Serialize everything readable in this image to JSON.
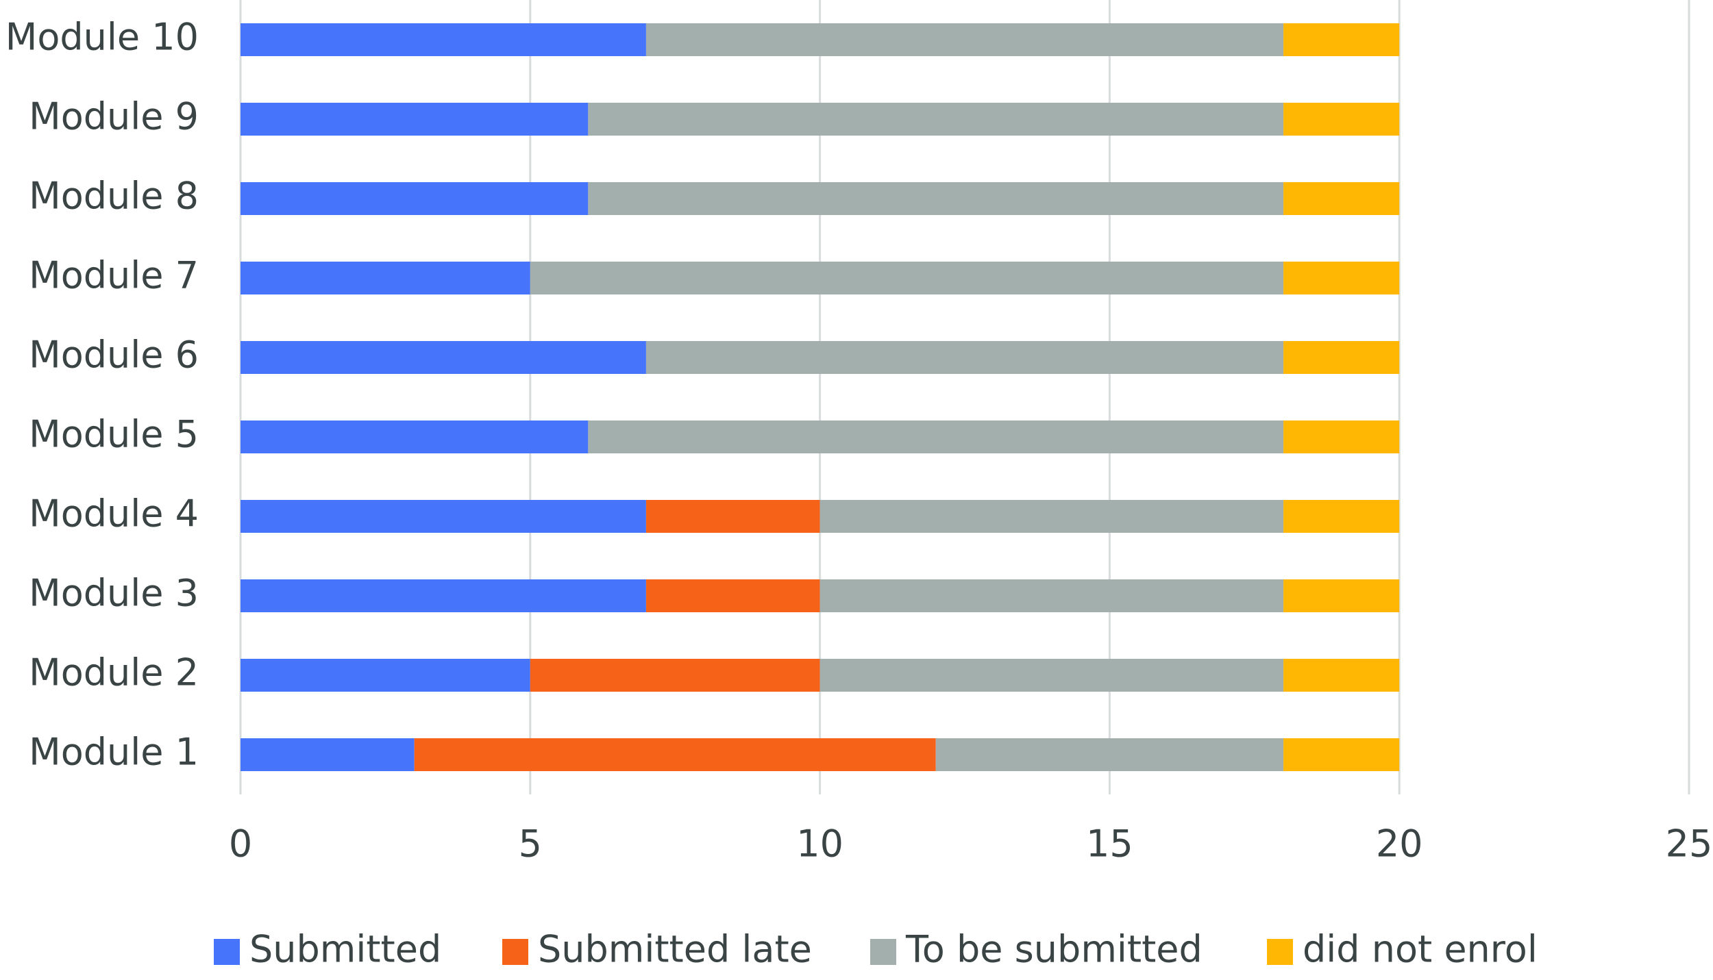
{
  "chart_data": {
    "type": "bar",
    "orientation": "horizontal",
    "stacked": true,
    "categories": [
      "Module 1",
      "Module 2",
      "Module 3",
      "Module 4",
      "Module 5",
      "Module 6",
      "Module 7",
      "Module 8",
      "Module 9",
      "Module 10"
    ],
    "series": [
      {
        "name": "Submitted",
        "color": "#4675fb",
        "values": [
          3,
          5,
          7,
          7,
          6,
          7,
          5,
          6,
          6,
          7
        ]
      },
      {
        "name": "Submitted late",
        "color": "#f76219",
        "values": [
          9,
          5,
          3,
          3,
          0,
          0,
          0,
          0,
          0,
          0
        ]
      },
      {
        "name": "To be submitted",
        "color": "#a3afad",
        "values": [
          6,
          8,
          8,
          8,
          12,
          11,
          13,
          12,
          12,
          11
        ]
      },
      {
        "name": "did not enrol",
        "color": "#ffb703",
        "values": [
          2,
          2,
          2,
          2,
          2,
          2,
          2,
          2,
          2,
          2
        ]
      }
    ],
    "xlim": [
      0,
      25
    ],
    "xticks": [
      0,
      5,
      10,
      15,
      20,
      25
    ],
    "grid": true,
    "legend": "bottom"
  }
}
